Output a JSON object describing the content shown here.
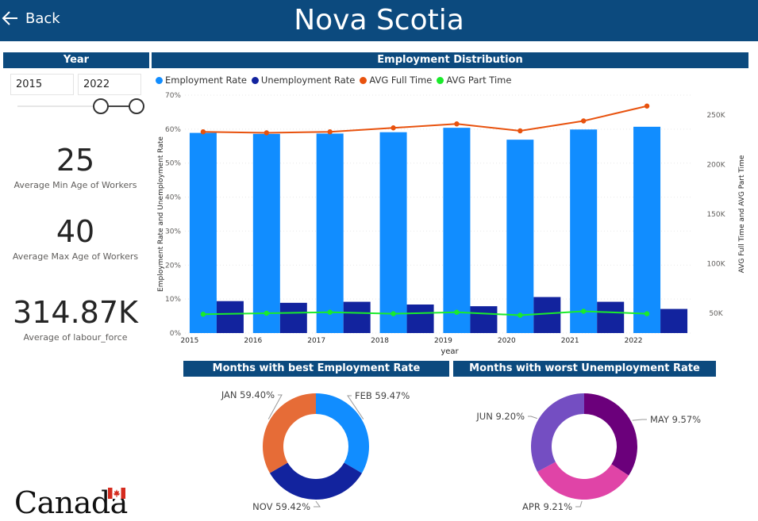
{
  "header": {
    "title": "Nova Scotia",
    "back_label": "Back"
  },
  "year_filter": {
    "title": "Year",
    "start": "2015",
    "end": "2022"
  },
  "kpis": [
    {
      "value": "25",
      "label": "Average Min Age of Workers"
    },
    {
      "value": "40",
      "label": "Average Max Age of Workers"
    },
    {
      "value": "314.87K",
      "label": "Average of labour_force"
    }
  ],
  "logo": {
    "wordmark": "Canada"
  },
  "colors": {
    "header_bg": "#0c4a7e",
    "employment": "#118dff",
    "unemployment": "#12239e",
    "full_time": "#e8520e",
    "part_time": "#1aeb2b",
    "donut1": [
      "#118dff",
      "#12239e",
      "#e66c37"
    ],
    "donut2": [
      "#6b007b",
      "#e044a7",
      "#744ec2"
    ]
  },
  "chart_data": [
    {
      "type": "bar",
      "title": "Employment Distribution",
      "xlabel": "year",
      "ylabel": "Employment Rate and Unemployment Rate",
      "y2label": "AVG Full Time and AVG Part Time",
      "categories": [
        "2015",
        "2016",
        "2017",
        "2018",
        "2019",
        "2020",
        "2021",
        "2022"
      ],
      "ylim": [
        0,
        70
      ],
      "y_ticks": [
        "0%",
        "10%",
        "20%",
        "30%",
        "40%",
        "50%",
        "60%",
        "70%"
      ],
      "y2lim": [
        30000,
        270000
      ],
      "y2_ticks": [
        "50K",
        "100K",
        "150K",
        "200K",
        "250K"
      ],
      "series": [
        {
          "name": "Employment Rate",
          "kind": "bar",
          "axis": "left",
          "values": [
            58.9,
            58.6,
            58.7,
            59.1,
            60.4,
            56.9,
            59.9,
            60.7
          ]
        },
        {
          "name": "Unemployment Rate",
          "kind": "bar",
          "axis": "left",
          "values": [
            9.4,
            8.9,
            9.2,
            8.4,
            7.9,
            10.6,
            9.2,
            7.1
          ]
        },
        {
          "name": "AVG Full Time",
          "kind": "line",
          "axis": "right",
          "values": [
            233000,
            232000,
            233000,
            237000,
            241000,
            234000,
            244000,
            259000
          ]
        },
        {
          "name": "AVG Part Time",
          "kind": "line",
          "axis": "right",
          "values": [
            49000,
            50000,
            51000,
            49500,
            51000,
            48000,
            52000,
            49500
          ]
        }
      ]
    },
    {
      "type": "pie",
      "title": "Months with best Employment Rate",
      "slices": [
        {
          "label": "FEB",
          "value": 59.47,
          "text": "FEB 59.47%"
        },
        {
          "label": "NOV",
          "value": 59.42,
          "text": "NOV 59.42%"
        },
        {
          "label": "JAN",
          "value": 59.4,
          "text": "JAN 59.40%"
        }
      ]
    },
    {
      "type": "pie",
      "title": "Months with worst Unemployment Rate",
      "slices": [
        {
          "label": "MAY",
          "value": 9.57,
          "text": "MAY 9.57%"
        },
        {
          "label": "APR",
          "value": 9.21,
          "text": "APR 9.21%"
        },
        {
          "label": "JUN",
          "value": 9.2,
          "text": "JUN 9.20%"
        }
      ]
    }
  ]
}
